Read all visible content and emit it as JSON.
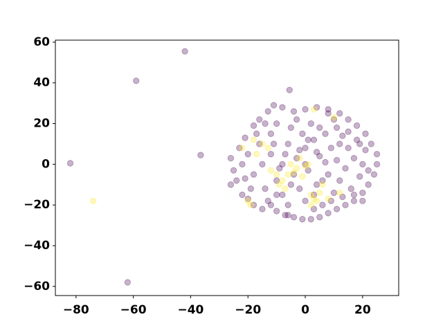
{
  "chart_data": {
    "type": "scatter",
    "xlim": [
      -87.2,
      32.6
    ],
    "ylim": [
      -64.5,
      61.0
    ],
    "xticks": [
      {
        "value": -80,
        "label": "−80"
      },
      {
        "value": -60,
        "label": "−60"
      },
      {
        "value": -40,
        "label": "−40"
      },
      {
        "value": -20,
        "label": "−20"
      },
      0,
      20
    ],
    "yticks": [
      {
        "value": -60,
        "label": "−60"
      },
      {
        "value": -40,
        "label": "−40"
      },
      {
        "value": -20,
        "label": "−20"
      },
      0,
      20,
      40,
      60
    ],
    "series": [
      {
        "color": "#440154",
        "x": [
          -82,
          -59,
          -42,
          -36.5,
          -62,
          -5.5,
          -26,
          -26,
          -24,
          -22,
          -20,
          -18,
          -15,
          -12,
          -10,
          -7,
          -4,
          -1,
          2,
          5,
          8,
          11,
          14,
          17,
          20,
          22,
          24,
          25,
          25,
          23,
          21,
          18,
          15,
          12,
          8,
          4,
          0,
          -4,
          -8,
          -11,
          -13,
          -16,
          -18,
          -21,
          -23,
          -25,
          -20,
          -18,
          -16,
          -15,
          -14,
          -12,
          -12,
          -10,
          -10,
          -8,
          -8,
          -6,
          -6,
          -5,
          -4,
          -3,
          -2,
          -1,
          0,
          0,
          1,
          2,
          3,
          4,
          5,
          6,
          7,
          8,
          9,
          10,
          10,
          11,
          12,
          13,
          14,
          15,
          16,
          17,
          18,
          19,
          20,
          21,
          22,
          -19,
          -17,
          -13,
          -11,
          -9,
          -7,
          -5,
          -3,
          -2,
          1,
          3,
          5,
          6,
          7,
          9,
          11,
          13,
          15,
          17,
          19,
          -22,
          -21,
          3,
          -6,
          8,
          0,
          4,
          -14,
          -10,
          12,
          20
        ],
        "values": [
          0.5,
          41,
          55.5,
          4.5,
          -58,
          36.5,
          3,
          -10,
          -8,
          -15,
          -17,
          -20,
          -22,
          -20,
          -23,
          -25,
          -26,
          -27,
          -27,
          -26,
          -24,
          -22,
          -20,
          -18,
          -14,
          -10,
          -5,
          0,
          5,
          10,
          15,
          19,
          22,
          25,
          27,
          28,
          27,
          26,
          28,
          29,
          26,
          22,
          19,
          13,
          8,
          -3,
          5,
          -5,
          10,
          0,
          -12,
          15,
          5,
          -8,
          20,
          0,
          -15,
          10,
          -20,
          18,
          -5,
          3,
          -12,
          15,
          8,
          -18,
          -3,
          20,
          12,
          -10,
          4,
          -20,
          15,
          -5,
          8,
          -14,
          22,
          2,
          -8,
          14,
          -2,
          8,
          -12,
          3,
          12,
          -6,
          0,
          7,
          -3,
          -12,
          15,
          -18,
          10,
          -2,
          5,
          -10,
          22,
          7,
          12,
          -22,
          18,
          -8,
          1,
          -18,
          18,
          -16,
          16,
          -15,
          10,
          0,
          -7,
          -15,
          -25,
          25,
          0,
          6,
          20,
          -15,
          10,
          -18
        ]
      },
      {
        "color": "#fde725",
        "x": [
          -74,
          -20,
          -19,
          -17,
          -15,
          -13,
          -12,
          -10,
          -9,
          -8,
          -7,
          -5,
          -4,
          -3,
          -2,
          0,
          1,
          2,
          3,
          4,
          5,
          6,
          3,
          10,
          12,
          -1,
          -6,
          -22,
          -18,
          2,
          8
        ],
        "values": [
          -18,
          -18,
          -20,
          5,
          10,
          8,
          -3,
          -5,
          -10,
          -8,
          -12,
          0,
          -4,
          -2,
          3,
          -1,
          0,
          -15,
          -17,
          -18,
          -14,
          -10,
          27,
          23,
          -14,
          -6,
          -5,
          8,
          12,
          -20,
          -17
        ]
      }
    ]
  }
}
